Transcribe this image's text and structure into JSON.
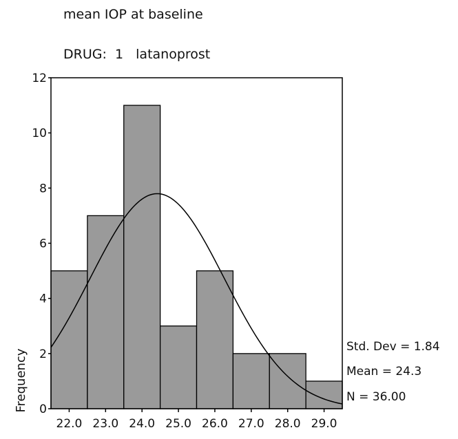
{
  "chart_data": {
    "type": "bar",
    "title": "mean IOP at baseline",
    "subtitle": "DRUG:  1   latanoprost",
    "xlabel": "",
    "ylabel": "Frequency",
    "categories": [
      "22.0",
      "23.0",
      "24.0",
      "25.0",
      "26.0",
      "27.0",
      "28.0",
      "29.0"
    ],
    "values": [
      5,
      7,
      11,
      3,
      5,
      2,
      2,
      1
    ],
    "ylim": [
      0,
      12
    ],
    "yticks": [
      0,
      2,
      4,
      6,
      8,
      10,
      12
    ],
    "bar_color": "#9a9a9a",
    "normal_curve": true,
    "grid": false,
    "stats": {
      "std_dev": "Std. Dev = 1.84",
      "mean": "Mean = 24.3",
      "n": "N = 36.00"
    }
  }
}
